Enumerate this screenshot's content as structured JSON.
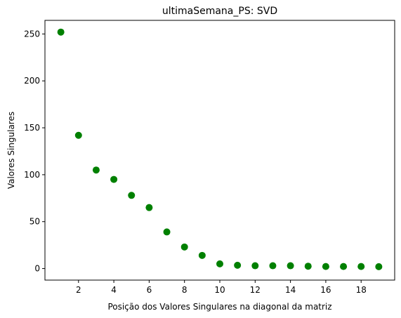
{
  "chart_data": {
    "type": "scatter",
    "title": "ultimaSemana_PS: SVD",
    "xlabel": "Posição dos Valores Singulares na diagonal da matriz",
    "ylabel": "Valores Singulares",
    "xlim": [
      0.1,
      19.9
    ],
    "ylim": [
      -12.3,
      264.5
    ],
    "xticks": [
      2,
      4,
      6,
      8,
      10,
      12,
      14,
      16,
      18
    ],
    "yticks": [
      0,
      50,
      100,
      150,
      200,
      250
    ],
    "marker_color": "#008000",
    "grid": false,
    "series": [
      {
        "x": [
          1,
          2,
          3,
          4,
          5,
          6,
          7,
          8,
          9,
          10,
          11,
          12,
          13,
          14,
          15,
          16,
          17,
          18,
          19
        ],
        "y": [
          252,
          142,
          105,
          95,
          78,
          65,
          39,
          23,
          14,
          5,
          3.5,
          3,
          3,
          3,
          2.5,
          2.2,
          2.2,
          2.2,
          2
        ]
      }
    ]
  }
}
